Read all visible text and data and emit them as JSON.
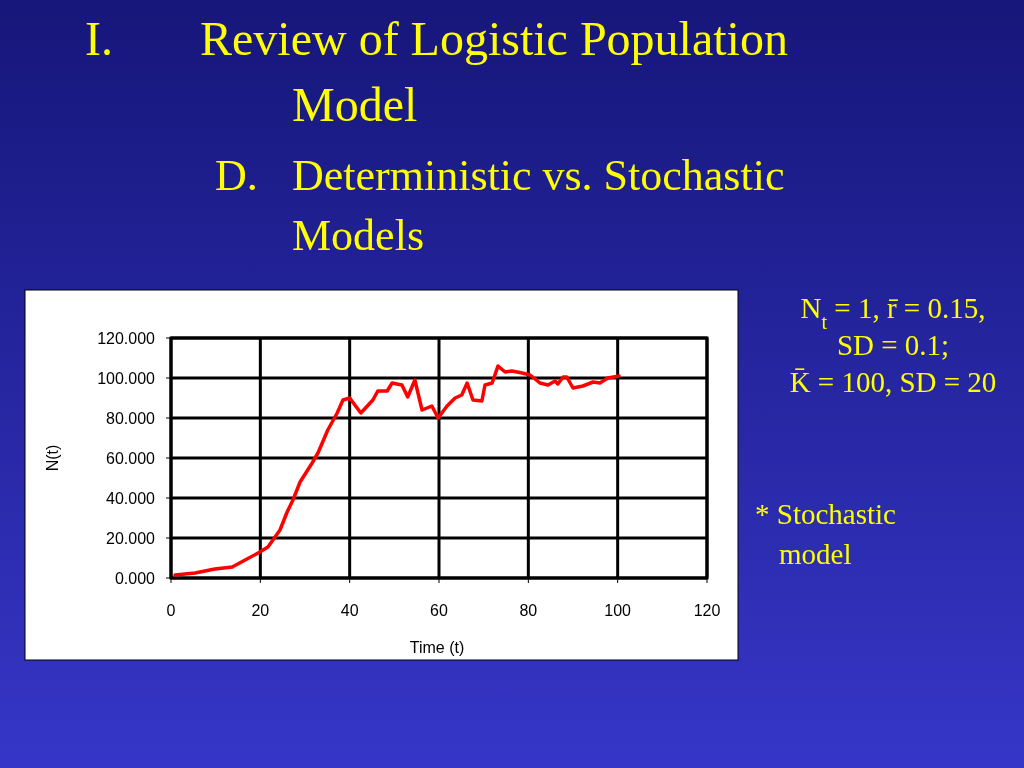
{
  "chart_data": {
    "type": "line",
    "title": "I. Review of Logistic Population Model",
    "subtitle": "D. Deterministic vs. Stochastic Models",
    "xlabel": "Time (t)",
    "ylabel": "N(t)",
    "annotations": [
      "N$_{t}$ = 1, r̄ = 0.15,",
      "SD = 0.1;",
      "K̄ = 100, SD = 20",
      "* Stochastic model"
    ],
    "xlim": [
      0,
      120
    ],
    "xticks": [
      0,
      20,
      40,
      60,
      80,
      100,
      120
    ],
    "ylim": [
      0,
      120
    ],
    "yticks": [
      {
        "value": 0,
        "label": "0.000"
      },
      {
        "value": 20,
        "label": "20.000"
      },
      {
        "value": 40,
        "label": "40.000"
      },
      {
        "value": 60,
        "label": "60.000"
      },
      {
        "value": 80,
        "label": "80.000"
      },
      {
        "value": 100,
        "label": "100.000"
      },
      {
        "value": 120,
        "label": "120.000"
      }
    ],
    "grid": true,
    "marker": "none",
    "line_style": "solid",
    "series": [
      {
        "color": "#ff0000",
        "x": [
          0.9,
          5.4,
          9.8,
          13.7,
          16.6,
          19.5,
          21.7,
          24.4,
          26,
          27.3,
          28.9,
          31.6,
          32.9,
          35.1,
          37.2,
          38.5,
          40,
          42.5,
          45.2,
          46.3,
          48.4,
          49.5,
          51.7,
          53,
          54.6,
          56.2,
          58.4,
          59.8,
          61.8,
          63.6,
          65.1,
          66.3,
          67.6,
          69.6,
          70.3,
          71.9,
          73.2,
          74.8,
          76.3,
          78.6,
          80.4,
          82.6,
          84.4,
          86,
          86.6,
          87.8,
          88.6,
          90,
          92.2,
          94.5,
          96,
          97.8,
          100.3
        ],
        "values": [
          1.5,
          2.5,
          4.5,
          5.5,
          9,
          12.5,
          15.5,
          24,
          33,
          39,
          48,
          57.5,
          62.5,
          74,
          82.5,
          89,
          90,
          82.5,
          89,
          93.5,
          93.5,
          97.5,
          96.5,
          90.5,
          99,
          84,
          86,
          80,
          86,
          90,
          91.5,
          97.5,
          89,
          88.5,
          96.5,
          97.5,
          106,
          103,
          103.5,
          102.5,
          101.5,
          97.5,
          96.5,
          98.5,
          97,
          100.5,
          100.5,
          95,
          96,
          98,
          97.5,
          100,
          101
        ]
      }
    ]
  }
}
